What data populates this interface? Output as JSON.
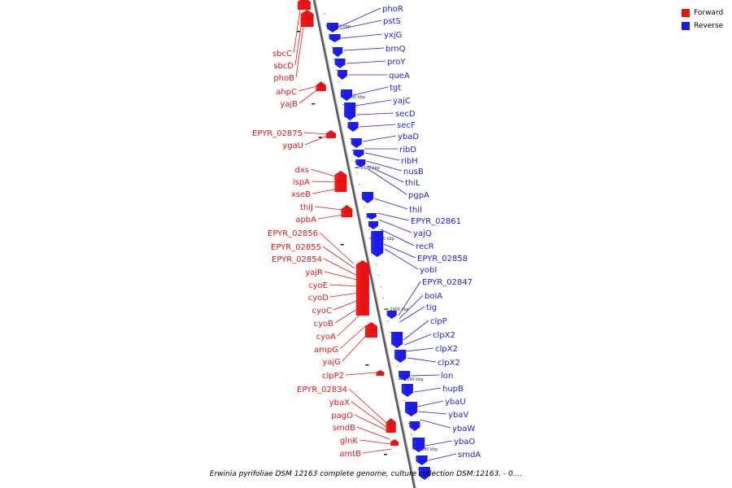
{
  "legend": {
    "forward_label": "Forward",
    "reverse_label": "Reverse",
    "forward_color": "#e81414",
    "reverse_color": "#1c1ce8"
  },
  "caption": "Erwinia pyrifoliae DSM 12163 complete genome, culture collection DSM:12163. - 0....",
  "axis": {
    "ticks": [
      "2940 kbp",
      "2930 kbp",
      "2920 kbp",
      "2910 kbp",
      "2900 kbp",
      "2890 kbp",
      "2880 kbp"
    ]
  },
  "forward_genes": [
    "sbcC",
    "sbcD",
    "phoB",
    "ahpC",
    "yajB",
    "EPYR_02875",
    "ygaU",
    "dxs",
    "ispA",
    "xseB",
    "thiJ",
    "apbA",
    "EPYR_02856",
    "EPYR_02855",
    "EPYR_02854",
    "yajR",
    "cyoE",
    "cyoD",
    "cyoC",
    "cyoB",
    "cyoA",
    "ampG",
    "yajG",
    "clpP2",
    "EPYR_02834",
    "ybaX",
    "pagO",
    "smdB",
    "glnK",
    "amtB"
  ],
  "reverse_genes": [
    "phoR",
    "pstS",
    "yxjG",
    "brnQ",
    "proY",
    "queA",
    "tgt",
    "yajC",
    "secD",
    "secF",
    "ybaD",
    "ribD",
    "ribH",
    "nusB",
    "thiL",
    "pgpA",
    "thiI",
    "EPYR_02861",
    "yajQ",
    "recR",
    "EPYR_02858",
    "yobI",
    "EPYR_02847",
    "bolA",
    "tig",
    "clpP",
    "clpX2",
    "clpX2",
    "clpX2",
    "lon",
    "hupB",
    "ybaU",
    "ybaV",
    "ybaW",
    "ybaO",
    "smdA"
  ]
}
